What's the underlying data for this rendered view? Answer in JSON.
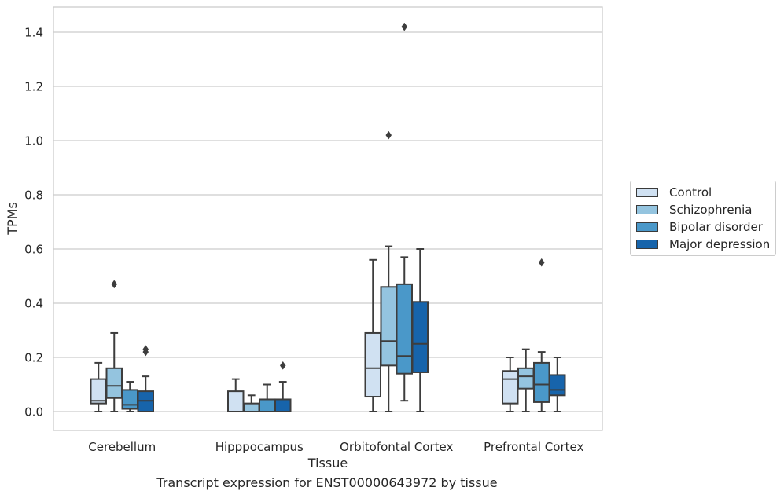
{
  "chart_data": {
    "type": "box",
    "xlabel": "Tissue",
    "ylabel": "TPMs",
    "ylim": [
      -0.07,
      1.49
    ],
    "yticks": [
      "0.0",
      "0.2",
      "0.4",
      "0.6",
      "0.8",
      "1.0",
      "1.2",
      "1.4"
    ],
    "grid": true,
    "legend_position": "right, outside",
    "categories": [
      "Cerebellum",
      "Hipppocampus",
      "Orbitofontal Cortex",
      "Prefrontal Cortex"
    ],
    "series": [
      {
        "name": "Control",
        "color": "#d0e1f2",
        "boxes": [
          {
            "whislo": 0.0,
            "q1": 0.03,
            "med": 0.04,
            "q3": 0.12,
            "whishi": 0.18,
            "fliers": []
          },
          {
            "whislo": 0.0,
            "q1": 0.0,
            "med": 0.0,
            "q3": 0.075,
            "whishi": 0.12,
            "fliers": []
          },
          {
            "whislo": 0.0,
            "q1": 0.055,
            "med": 0.16,
            "q3": 0.29,
            "whishi": 0.56,
            "fliers": []
          },
          {
            "whislo": 0.0,
            "q1": 0.03,
            "med": 0.12,
            "q3": 0.15,
            "whishi": 0.2,
            "fliers": []
          }
        ]
      },
      {
        "name": "Schizophrenia",
        "color": "#94c4df",
        "boxes": [
          {
            "whislo": 0.0,
            "q1": 0.05,
            "med": 0.095,
            "q3": 0.16,
            "whishi": 0.29,
            "fliers": [
              0.47
            ]
          },
          {
            "whislo": 0.0,
            "q1": 0.0,
            "med": 0.0,
            "q3": 0.03,
            "whishi": 0.06,
            "fliers": []
          },
          {
            "whislo": 0.0,
            "q1": 0.17,
            "med": 0.26,
            "q3": 0.46,
            "whishi": 0.61,
            "fliers": [
              1.02
            ]
          },
          {
            "whislo": 0.0,
            "q1": 0.085,
            "med": 0.13,
            "q3": 0.16,
            "whishi": 0.23,
            "fliers": []
          }
        ]
      },
      {
        "name": "Bipolar disorder",
        "color": "#4a98c9",
        "boxes": [
          {
            "whislo": 0.0,
            "q1": 0.01,
            "med": 0.025,
            "q3": 0.08,
            "whishi": 0.11,
            "fliers": []
          },
          {
            "whislo": 0.0,
            "q1": 0.0,
            "med": 0.0,
            "q3": 0.045,
            "whishi": 0.1,
            "fliers": []
          },
          {
            "whislo": 0.04,
            "q1": 0.14,
            "med": 0.205,
            "q3": 0.47,
            "whishi": 0.57,
            "fliers": [
              1.42
            ]
          },
          {
            "whislo": 0.0,
            "q1": 0.035,
            "med": 0.1,
            "q3": 0.18,
            "whishi": 0.22,
            "fliers": [
              0.55
            ]
          }
        ]
      },
      {
        "name": "Major depression",
        "color": "#1764ab",
        "boxes": [
          {
            "whislo": 0.0,
            "q1": 0.0,
            "med": 0.04,
            "q3": 0.075,
            "whishi": 0.13,
            "fliers": [
              0.22,
              0.23
            ]
          },
          {
            "whislo": 0.0,
            "q1": 0.0,
            "med": 0.0,
            "q3": 0.045,
            "whishi": 0.11,
            "fliers": [
              0.17
            ]
          },
          {
            "whislo": 0.0,
            "q1": 0.145,
            "med": 0.25,
            "q3": 0.405,
            "whishi": 0.6,
            "fliers": []
          },
          {
            "whislo": 0.0,
            "q1": 0.06,
            "med": 0.08,
            "q3": 0.135,
            "whishi": 0.2,
            "fliers": []
          }
        ]
      }
    ]
  },
  "caption": "Transcript expression for ENST00000643972 by tissue"
}
